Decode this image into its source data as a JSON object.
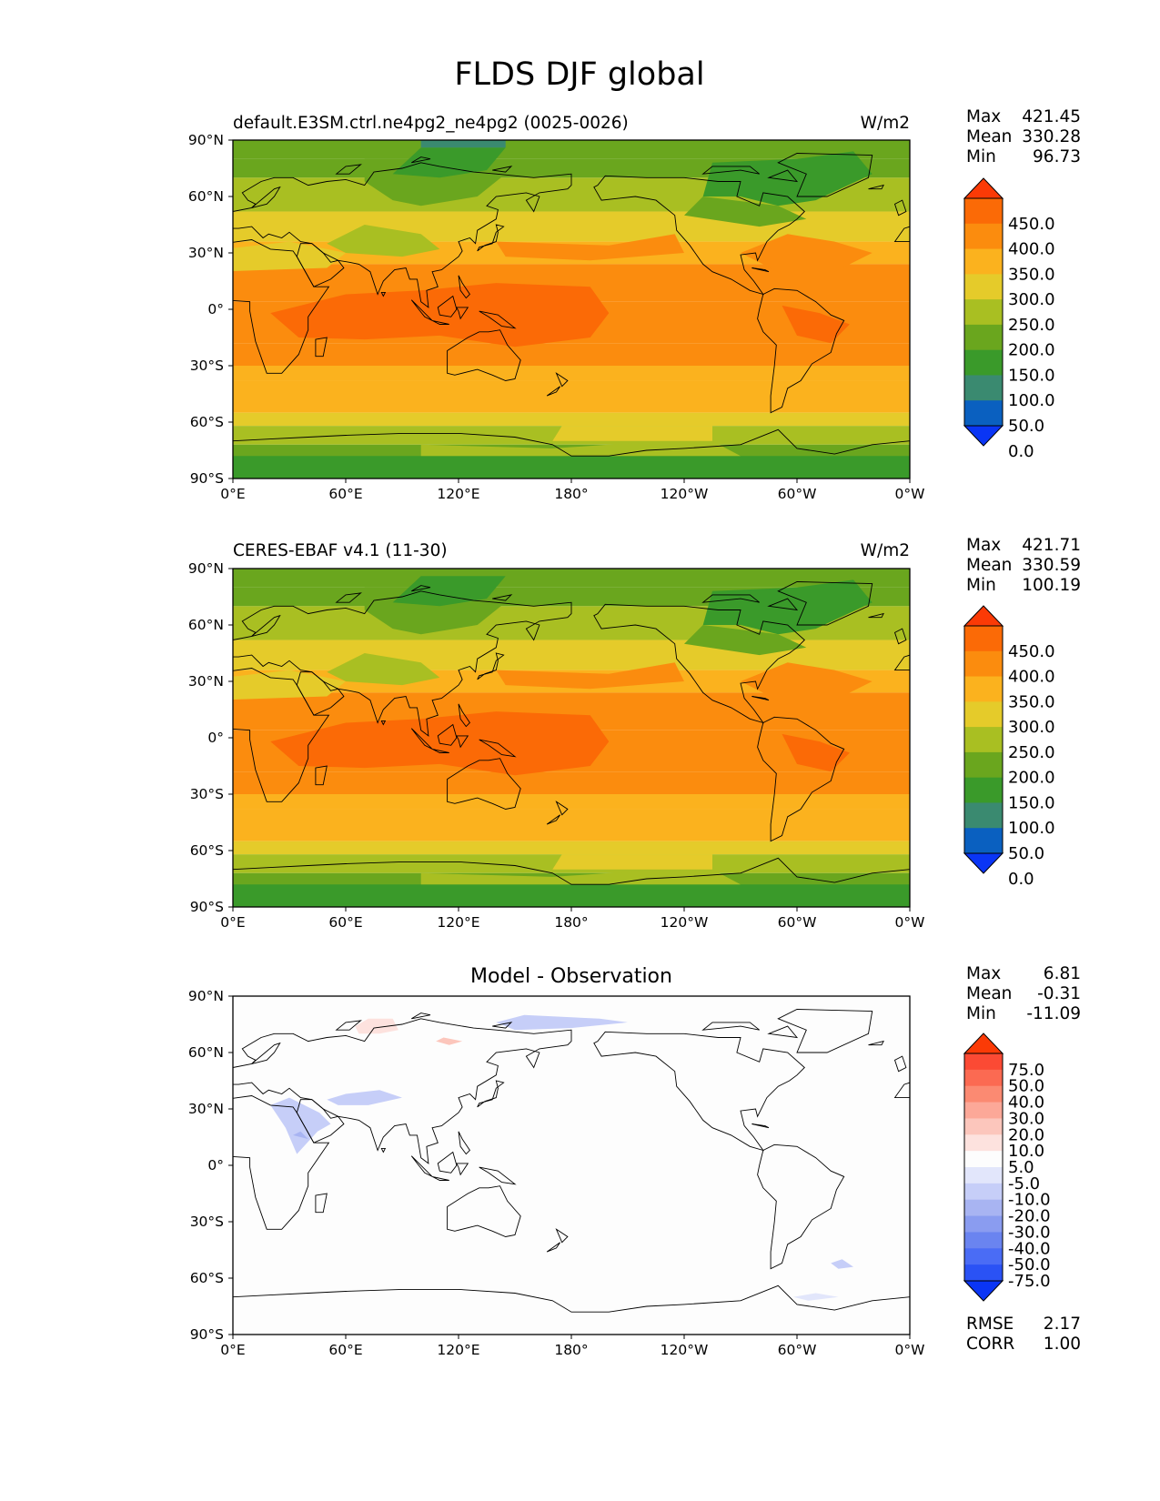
{
  "figure_title": "FLDS DJF global",
  "panels": [
    {
      "title_left": "default.E3SM.ctrl.ne4pg2_ne4pg2 (0025-0026)",
      "title_right": "W/m2",
      "stats": [
        {
          "label": "Max",
          "value": "421.45"
        },
        {
          "label": "Mean",
          "value": "330.28"
        },
        {
          "label": "Min",
          "value": "96.73"
        }
      ],
      "colorbar_labels": [
        "450.0",
        "400.0",
        "350.0",
        "300.0",
        "250.0",
        "200.0",
        "150.0",
        "100.0",
        "50.0",
        "0.0"
      ]
    },
    {
      "title_left": "CERES-EBAF v4.1 (11-30)",
      "title_right": "W/m2",
      "stats": [
        {
          "label": "Max",
          "value": "421.71"
        },
        {
          "label": "Mean",
          "value": "330.59"
        },
        {
          "label": "Min",
          "value": "100.19"
        }
      ],
      "colorbar_labels": [
        "450.0",
        "400.0",
        "350.0",
        "300.0",
        "250.0",
        "200.0",
        "150.0",
        "100.0",
        "50.0",
        "0.0"
      ]
    },
    {
      "title_center": "Model - Observation",
      "stats": [
        {
          "label": "Max",
          "value": "6.81"
        },
        {
          "label": "Mean",
          "value": "-0.31"
        },
        {
          "label": "Min",
          "value": "-11.09"
        }
      ],
      "colorbar_labels": [
        "75.0",
        "50.0",
        "40.0",
        "30.0",
        "20.0",
        "10.0",
        "5.0",
        "-5.0",
        "-10.0",
        "-20.0",
        "-30.0",
        "-40.0",
        "-50.0",
        "-75.0"
      ],
      "footer_stats": [
        {
          "label": "RMSE",
          "value": "2.17"
        },
        {
          "label": "CORR",
          "value": "1.00"
        }
      ]
    }
  ],
  "axes": {
    "x_ticks": [
      "0°E",
      "60°E",
      "120°E",
      "180°",
      "120°W",
      "60°W",
      "0°W"
    ],
    "y_ticks": [
      "90°N",
      "60°N",
      "30°N",
      "0°",
      "30°S",
      "60°S",
      "90°S"
    ]
  },
  "colors": {
    "field_levels": [
      "#0a35f5",
      "#0a60c0",
      "#3a8a70",
      "#3a9a2a",
      "#6aa61e",
      "#a9bf22",
      "#e5cb2a",
      "#fbb21e",
      "#fb8c0e",
      "#fb6a06",
      "#fb3a06"
    ],
    "diff_levels": [
      "#0a35f5",
      "#2a52f5",
      "#4a6cf5",
      "#6a84f0",
      "#8a9cf0",
      "#a8b4f2",
      "#c6cef8",
      "#e2e6fb",
      "#fdfdfd",
      "#fde2de",
      "#fcc6bc",
      "#fca898",
      "#fb8a72",
      "#fb6a52",
      "#fb4a34",
      "#fb3a06"
    ],
    "map_land_line": "#000000",
    "diff_background": "#fdfdfd"
  },
  "chart_data": [
    {
      "type": "heatmap",
      "title": "default.E3SM.ctrl.ne4pg2_ne4pg2 (0025-0026)",
      "units": "W/m2",
      "lon_range": [
        0,
        360
      ],
      "lat_range": [
        -90,
        90
      ],
      "contour_levels": [
        0,
        50,
        100,
        150,
        200,
        250,
        300,
        350,
        400,
        450
      ],
      "zonal_profile": {
        "lat": [
          90,
          75,
          60,
          45,
          30,
          15,
          0,
          -15,
          -30,
          -45,
          -60,
          -75,
          -90
        ],
        "approx_value": [
          160,
          200,
          230,
          260,
          320,
          380,
          400,
          380,
          340,
          320,
          290,
          200,
          140
        ]
      },
      "max": 421.45,
      "mean": 330.28,
      "min": 96.73
    },
    {
      "type": "heatmap",
      "title": "CERES-EBAF v4.1 (11-30)",
      "units": "W/m2",
      "lon_range": [
        0,
        360
      ],
      "lat_range": [
        -90,
        90
      ],
      "contour_levels": [
        0,
        50,
        100,
        150,
        200,
        250,
        300,
        350,
        400,
        450
      ],
      "zonal_profile": {
        "lat": [
          90,
          75,
          60,
          45,
          30,
          15,
          0,
          -15,
          -30,
          -45,
          -60,
          -75,
          -90
        ],
        "approx_value": [
          170,
          200,
          230,
          260,
          320,
          380,
          400,
          380,
          340,
          320,
          290,
          200,
          140
        ]
      },
      "max": 421.71,
      "mean": 330.59,
      "min": 100.19
    },
    {
      "type": "heatmap",
      "title": "Model - Observation",
      "lon_range": [
        0,
        360
      ],
      "lat_range": [
        -90,
        90
      ],
      "contour_levels": [
        -75,
        -50,
        -40,
        -30,
        -20,
        -10,
        -5,
        5,
        10,
        20,
        30,
        40,
        50,
        75
      ],
      "max": 6.81,
      "mean": -0.31,
      "min": -11.09,
      "rmse": 2.17,
      "corr": 1.0
    }
  ]
}
